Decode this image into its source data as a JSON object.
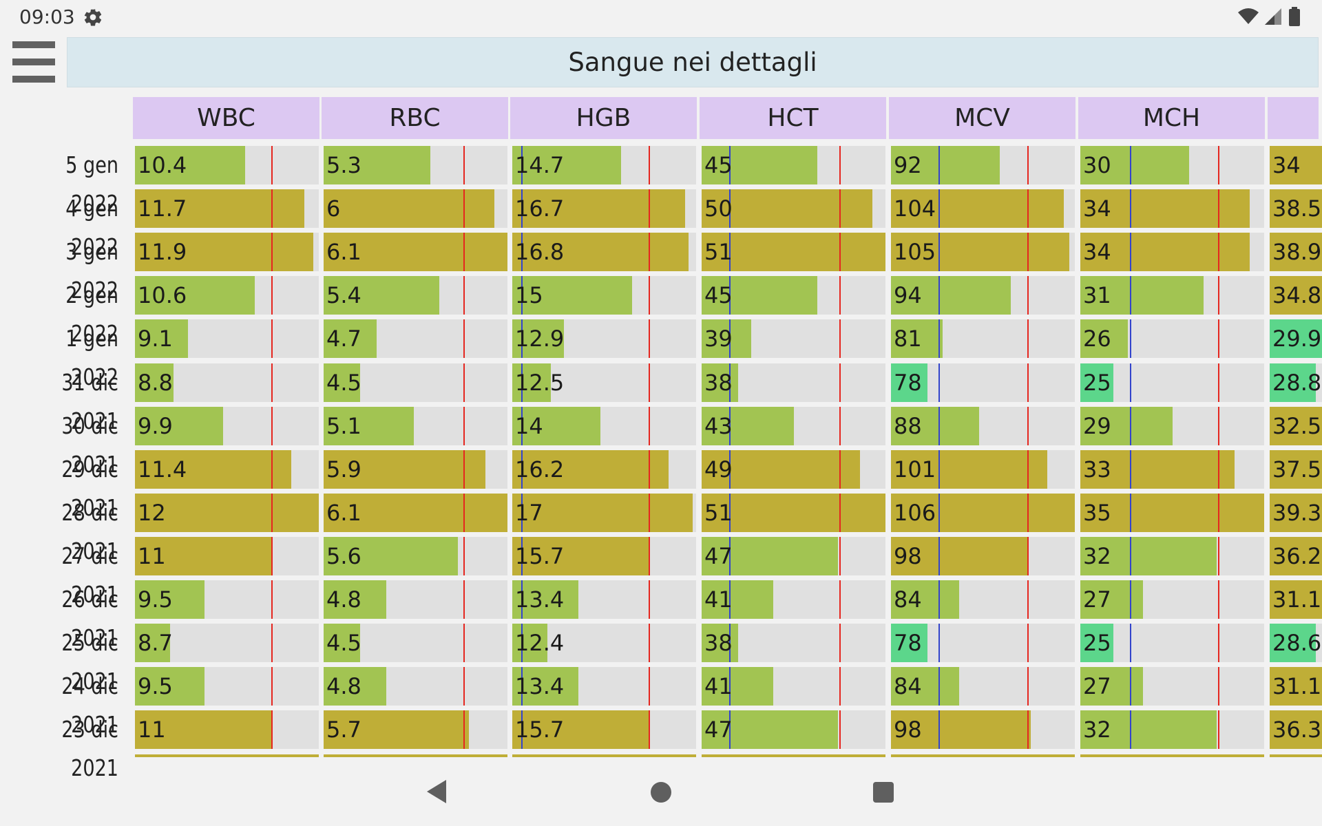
{
  "status_bar": {
    "time": "09:03"
  },
  "title": "Sangue nei dettagli",
  "colors": {
    "normal": "#a2c452",
    "high": "#bfae37",
    "low": "#5cd68b",
    "track": "#e0e0e0",
    "upper_ref": "#e5261f",
    "lower_ref": "#3344cc",
    "header_bg": "#dcc8f2",
    "title_bg": "#d9e8ee"
  },
  "columns": [
    {
      "id": "wbc",
      "label": "WBC"
    },
    {
      "id": "rbc",
      "label": "RBC"
    },
    {
      "id": "hgb",
      "label": "HGB"
    },
    {
      "id": "hct",
      "label": "HCT"
    },
    {
      "id": "mcv",
      "label": "MCV"
    },
    {
      "id": "mch",
      "label": "MCH"
    },
    {
      "id": "col7",
      "label": ""
    }
  ],
  "rows": [
    {
      "date": "5 gen 2022",
      "values": [
        "10.4",
        "5.3",
        "14.7",
        "45",
        "92",
        "30",
        "34"
      ],
      "status": [
        "normal",
        "normal",
        "normal",
        "normal",
        "normal",
        "normal",
        "high"
      ]
    },
    {
      "date": "4 gen 2022",
      "values": [
        "11.7",
        "6",
        "16.7",
        "50",
        "104",
        "34",
        "38.5"
      ],
      "status": [
        "high",
        "high",
        "high",
        "high",
        "high",
        "high",
        "high"
      ]
    },
    {
      "date": "3 gen 2022",
      "values": [
        "11.9",
        "6.1",
        "16.8",
        "51",
        "105",
        "34",
        "38.9"
      ],
      "status": [
        "high",
        "high",
        "high",
        "high",
        "high",
        "high",
        "high"
      ]
    },
    {
      "date": "2 gen 2022",
      "values": [
        "10.6",
        "5.4",
        "15",
        "45",
        "94",
        "31",
        "34.8"
      ],
      "status": [
        "normal",
        "normal",
        "normal",
        "normal",
        "normal",
        "normal",
        "high"
      ]
    },
    {
      "date": "1 gen 2022",
      "values": [
        "9.1",
        "4.7",
        "12.9",
        "39",
        "81",
        "26",
        "29.9"
      ],
      "status": [
        "normal",
        "normal",
        "normal",
        "normal",
        "normal",
        "normal",
        "low"
      ]
    },
    {
      "date": "31 dic 2021",
      "values": [
        "8.8",
        "4.5",
        "12.5",
        "38",
        "78",
        "25",
        "28.8"
      ],
      "status": [
        "normal",
        "normal",
        "normal",
        "normal",
        "low",
        "low",
        "low"
      ]
    },
    {
      "date": "30 dic 2021",
      "values": [
        "9.9",
        "5.1",
        "14",
        "43",
        "88",
        "29",
        "32.5"
      ],
      "status": [
        "normal",
        "normal",
        "normal",
        "normal",
        "normal",
        "normal",
        "high"
      ]
    },
    {
      "date": "29 dic 2021",
      "values": [
        "11.4",
        "5.9",
        "16.2",
        "49",
        "101",
        "33",
        "37.5"
      ],
      "status": [
        "high",
        "high",
        "high",
        "high",
        "high",
        "high",
        "high"
      ]
    },
    {
      "date": "28 dic 2021",
      "values": [
        "12",
        "6.1",
        "17",
        "51",
        "106",
        "35",
        "39.3"
      ],
      "status": [
        "high",
        "high",
        "high",
        "high",
        "high",
        "high",
        "high"
      ]
    },
    {
      "date": "27 dic 2021",
      "values": [
        "11",
        "5.6",
        "15.7",
        "47",
        "98",
        "32",
        "36.2"
      ],
      "status": [
        "high",
        "normal",
        "high",
        "normal",
        "high",
        "normal",
        "high"
      ]
    },
    {
      "date": "26 dic 2021",
      "values": [
        "9.5",
        "4.8",
        "13.4",
        "41",
        "84",
        "27",
        "31.1"
      ],
      "status": [
        "normal",
        "normal",
        "normal",
        "normal",
        "normal",
        "normal",
        "high"
      ]
    },
    {
      "date": "25 dic 2021",
      "values": [
        "8.7",
        "4.5",
        "12.4",
        "38",
        "78",
        "25",
        "28.6"
      ],
      "status": [
        "normal",
        "normal",
        "normal",
        "normal",
        "low",
        "low",
        "low"
      ]
    },
    {
      "date": "24 dic 2021",
      "values": [
        "9.5",
        "4.8",
        "13.4",
        "41",
        "84",
        "27",
        "31.1"
      ],
      "status": [
        "normal",
        "normal",
        "normal",
        "normal",
        "normal",
        "normal",
        "high"
      ]
    },
    {
      "date": "23 dic 2021",
      "values": [
        "11",
        "5.7",
        "15.7",
        "47",
        "98",
        "32",
        "36.3"
      ],
      "status": [
        "high",
        "high",
        "high",
        "normal",
        "high",
        "normal",
        "high"
      ]
    }
  ],
  "fill_fraction": [
    [
      0.6,
      0.58,
      0.59,
      0.63,
      0.59,
      0.59,
      0.7
    ],
    [
      0.92,
      0.93,
      0.94,
      0.93,
      0.94,
      0.92,
      0.93
    ],
    [
      0.97,
      1.0,
      0.96,
      1.0,
      0.97,
      0.92,
      0.95
    ],
    [
      0.65,
      0.63,
      0.65,
      0.63,
      0.65,
      0.67,
      0.75
    ],
    [
      0.29,
      0.29,
      0.28,
      0.27,
      0.28,
      0.26,
      0.35
    ],
    [
      0.21,
      0.2,
      0.21,
      0.2,
      0.2,
      0.18,
      0.25
    ],
    [
      0.48,
      0.49,
      0.48,
      0.5,
      0.48,
      0.5,
      0.6
    ],
    [
      0.85,
      0.88,
      0.85,
      0.86,
      0.85,
      0.84,
      0.9
    ],
    [
      1.0,
      1.0,
      0.98,
      1.0,
      1.0,
      1.0,
      1.0
    ],
    [
      0.75,
      0.73,
      0.75,
      0.74,
      0.74,
      0.74,
      0.8
    ],
    [
      0.38,
      0.34,
      0.36,
      0.39,
      0.37,
      0.34,
      0.45
    ],
    [
      0.19,
      0.2,
      0.19,
      0.2,
      0.2,
      0.18,
      0.25
    ],
    [
      0.38,
      0.34,
      0.36,
      0.39,
      0.37,
      0.34,
      0.45
    ],
    [
      0.75,
      0.79,
      0.75,
      0.74,
      0.76,
      0.74,
      0.8
    ]
  ],
  "reference_fraction": {
    "upper": [
      0.74,
      0.76,
      0.74,
      0.75,
      0.74,
      0.75,
      null
    ],
    "lower": [
      null,
      null,
      0.05,
      0.15,
      0.26,
      0.27,
      null
    ]
  }
}
